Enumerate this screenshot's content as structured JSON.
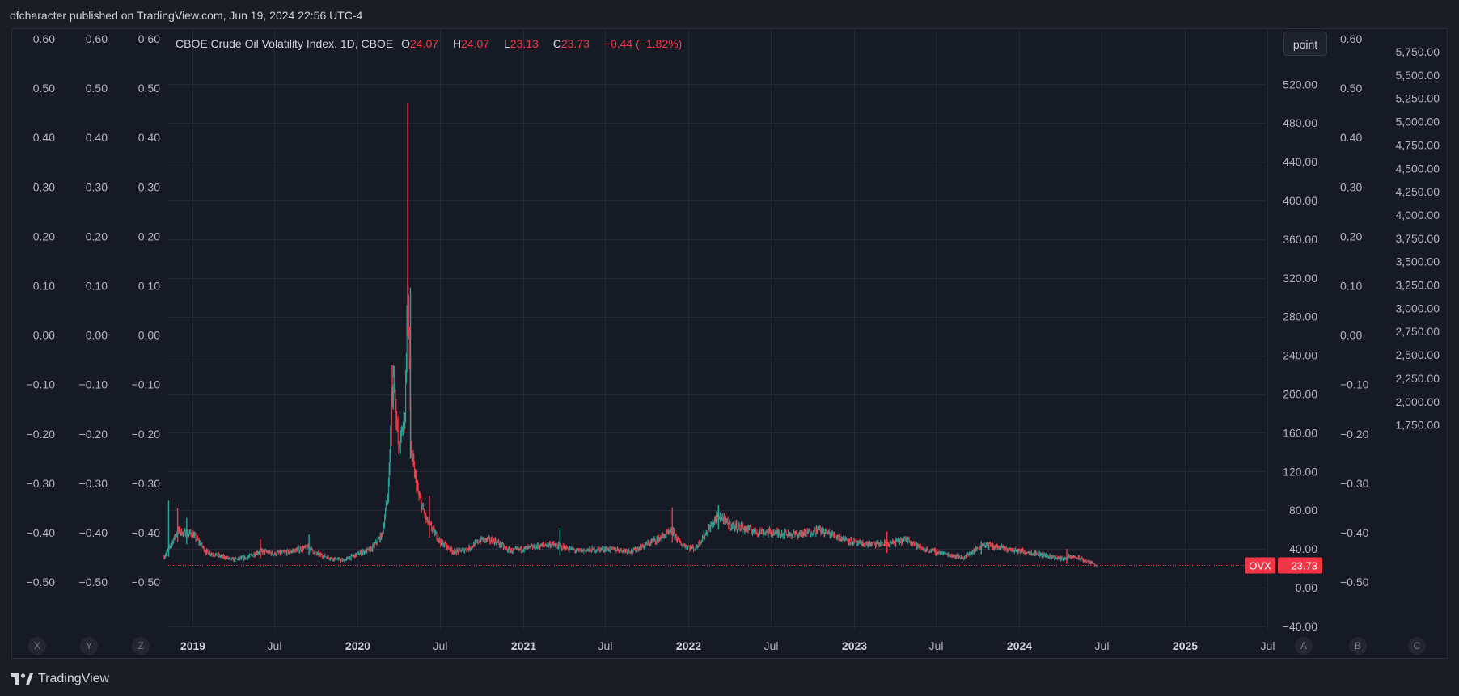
{
  "header": {
    "title": "ofcharacter published on TradingView.com, Jun 19, 2024 22:56 UTC-4"
  },
  "footer": {
    "brand": "TradingView"
  },
  "controls": {
    "scale_button": "point",
    "left_axis_buttons": [
      "X",
      "Y",
      "Z"
    ],
    "right_axis_buttons": [
      "A",
      "B",
      "C"
    ]
  },
  "legend": {
    "symbol": "CBOE Crude Oil Volatility Index, 1D, CBOE",
    "open_label": "O",
    "open": "24.07",
    "high_label": "H",
    "high": "24.07",
    "low_label": "L",
    "low": "23.13",
    "close_label": "C",
    "close": "23.73",
    "change": "−0.44 (−1.82%)"
  },
  "colors": {
    "up": "#26a69a",
    "down": "#f23645",
    "background": "#161a25",
    "grid": "#242834",
    "text": "#b2b5be",
    "price_line": "#f23645"
  },
  "chart_data": {
    "type": "candlestick",
    "title": "CBOE Crude Oil Volatility Index, 1D, CBOE",
    "ticker": "OVX",
    "last_price": 23.73,
    "last_price_label": "23.73",
    "date_range": [
      "2018-10-31",
      "2024-06-19"
    ],
    "x_ticks": [
      "2019",
      "Jul",
      "2020",
      "Jul",
      "2021",
      "Jul",
      "2022",
      "Jul",
      "2023",
      "Jul",
      "2024",
      "Jul",
      "2025",
      "Jul"
    ],
    "price_axis": {
      "ticks": [
        "520.00",
        "480.00",
        "440.00",
        "400.00",
        "360.00",
        "320.00",
        "280.00",
        "240.00",
        "200.00",
        "160.00",
        "120.00",
        "80.00",
        "40.00",
        "0.00",
        "−40.00"
      ]
    },
    "empty_axis_ticks": [
      "0.60",
      "0.50",
      "0.40",
      "0.30",
      "0.20",
      "0.10",
      "0.00",
      "−0.10",
      "−0.20",
      "−0.30",
      "−0.40",
      "−0.50"
    ],
    "far_right_axis_ticks": [
      "5,750.00",
      "5,500.00",
      "5,250.00",
      "5,000.00",
      "4,750.00",
      "4,500.00",
      "4,250.00",
      "4,000.00",
      "3,750.00",
      "3,500.00",
      "3,250.00",
      "3,000.00",
      "2,750.00",
      "2,500.00",
      "2,250.00",
      "2,000.00",
      "1,750.00"
    ],
    "grid": true,
    "series_path": [
      [
        "2018-10-31",
        32
      ],
      [
        "2018-11-15",
        44
      ],
      [
        "2018-11-30",
        59
      ],
      [
        "2018-12-15",
        56
      ],
      [
        "2018-12-31",
        56
      ],
      [
        "2019-01-15",
        48
      ],
      [
        "2019-02-01",
        37
      ],
      [
        "2019-03-01",
        33
      ],
      [
        "2019-04-01",
        29
      ],
      [
        "2019-05-01",
        31
      ],
      [
        "2019-06-01",
        38
      ],
      [
        "2019-07-01",
        35
      ],
      [
        "2019-08-01",
        37
      ],
      [
        "2019-09-16",
        42
      ],
      [
        "2019-10-01",
        35
      ],
      [
        "2019-11-01",
        31
      ],
      [
        "2019-12-01",
        28
      ],
      [
        "2020-01-08",
        36
      ],
      [
        "2020-02-01",
        40
      ],
      [
        "2020-02-25",
        55
      ],
      [
        "2020-03-09",
        100
      ],
      [
        "2020-03-20",
        230
      ],
      [
        "2020-04-01",
        140
      ],
      [
        "2020-04-15",
        180
      ],
      [
        "2020-04-21",
        325
      ],
      [
        "2020-04-28",
        140
      ],
      [
        "2020-05-15",
        95
      ],
      [
        "2020-06-01",
        70
      ],
      [
        "2020-07-01",
        48
      ],
      [
        "2020-08-01",
        37
      ],
      [
        "2020-09-01",
        40
      ],
      [
        "2020-10-01",
        50
      ],
      [
        "2020-11-01",
        48
      ],
      [
        "2020-12-01",
        38
      ],
      [
        "2021-01-01",
        40
      ],
      [
        "2021-03-01",
        45
      ],
      [
        "2021-05-01",
        38
      ],
      [
        "2021-07-01",
        40
      ],
      [
        "2021-09-01",
        38
      ],
      [
        "2021-11-26",
        58
      ],
      [
        "2021-12-15",
        45
      ],
      [
        "2022-01-15",
        40
      ],
      [
        "2022-03-08",
        75
      ],
      [
        "2022-04-01",
        65
      ],
      [
        "2022-06-01",
        58
      ],
      [
        "2022-09-01",
        55
      ],
      [
        "2022-10-15",
        60
      ],
      [
        "2022-12-01",
        52
      ],
      [
        "2023-01-15",
        45
      ],
      [
        "2023-03-15",
        45
      ],
      [
        "2023-05-01",
        50
      ],
      [
        "2023-06-01",
        40
      ],
      [
        "2023-08-01",
        34
      ],
      [
        "2023-09-01",
        31
      ],
      [
        "2023-10-15",
        45
      ],
      [
        "2023-12-01",
        40
      ],
      [
        "2024-02-01",
        36
      ],
      [
        "2024-04-01",
        30
      ],
      [
        "2024-05-01",
        32
      ],
      [
        "2024-06-19",
        23.73
      ]
    ],
    "spikes": [
      [
        "2018-11-10",
        90
      ],
      [
        "2018-11-30",
        82
      ],
      [
        "2018-12-20",
        72
      ],
      [
        "2019-06-01",
        50
      ],
      [
        "2019-09-16",
        55
      ],
      [
        "2020-03-16",
        230
      ],
      [
        "2020-03-20",
        210
      ],
      [
        "2020-04-21",
        500
      ],
      [
        "2020-04-27",
        310
      ],
      [
        "2020-06-08",
        95
      ],
      [
        "2021-03-23",
        62
      ],
      [
        "2021-11-26",
        83
      ],
      [
        "2022-03-08",
        85
      ],
      [
        "2023-03-15",
        58
      ],
      [
        "2023-10-09",
        48
      ],
      [
        "2024-04-15",
        40
      ]
    ]
  }
}
